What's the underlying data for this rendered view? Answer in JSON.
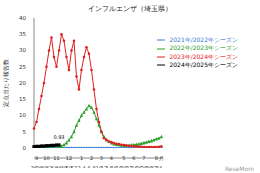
{
  "chart_data": {
    "type": "line",
    "title": "インフルエンザ（埼玉県）",
    "y_label": "定点当たり報告数",
    "source": "ReseMom",
    "categories": [
      36,
      null,
      38,
      null,
      40,
      null,
      42,
      null,
      44,
      null,
      46,
      null,
      48,
      null,
      50,
      null,
      52,
      null,
      2,
      null,
      4,
      null,
      6,
      null,
      8,
      null,
      10,
      null,
      12,
      null,
      14,
      null,
      16,
      null,
      18,
      null,
      20,
      null,
      22,
      null,
      24,
      null,
      26,
      null,
      28,
      null,
      30,
      null,
      32,
      null,
      34,
      null
    ],
    "month_labels": [
      null,
      "9",
      null,
      null,
      null,
      "10",
      null,
      null,
      null,
      "11",
      null,
      null,
      null,
      null,
      "12",
      null,
      null,
      null,
      null,
      "1",
      null,
      null,
      null,
      "2",
      null,
      null,
      null,
      "3",
      null,
      null,
      null,
      "4",
      null,
      null,
      null,
      null,
      "5",
      null,
      null,
      null,
      "6",
      null,
      null,
      null,
      "7",
      null,
      null,
      null,
      null,
      "8",
      null,
      "月"
    ],
    "series": [
      {
        "name": "2021年/2022年シーズン",
        "color": "#3a7bd5",
        "marker": "diamond",
        "values": [
          0,
          0,
          0,
          0,
          0,
          0,
          0,
          0,
          0,
          0,
          0,
          0,
          0,
          0,
          0,
          0,
          0,
          0,
          0,
          0,
          0,
          0,
          0,
          0,
          0,
          0,
          0,
          0,
          0,
          0,
          0,
          0,
          0,
          0,
          0,
          0,
          0,
          0,
          0,
          0,
          0,
          0,
          0,
          0,
          0,
          0,
          0,
          0,
          0,
          0,
          0,
          0
        ]
      },
      {
        "name": "2022年/2023年シーズン",
        "color": "#2ca02c",
        "marker": "triangle",
        "values": [
          0,
          0,
          0,
          0,
          0,
          0,
          0,
          0,
          0,
          0,
          0.3,
          0.6,
          1,
          1.6,
          2.5,
          3.5,
          5,
          7,
          8.5,
          10,
          11,
          12,
          13,
          12.5,
          11,
          9,
          7,
          5,
          3.5,
          2.5,
          2,
          1.6,
          1.3,
          1.1,
          1,
          0.9,
          0.8,
          0.8,
          0.8,
          0.9,
          1,
          1.1,
          1.2,
          1.4,
          1.6,
          1.8,
          2,
          2.2,
          2.5,
          2.8,
          3,
          3.5
        ]
      },
      {
        "name": "2023年/2024年シーズン",
        "color": "#e02020",
        "marker": "circle",
        "values": [
          6,
          8,
          12,
          16,
          20,
          25,
          30,
          34,
          28,
          25,
          30,
          35,
          33,
          28,
          24,
          30,
          33,
          22,
          18,
          24,
          28,
          31,
          29,
          24,
          18,
          12,
          8,
          5,
          3,
          2.5,
          2,
          1.8,
          1.5,
          1.3,
          1.2,
          1,
          0.9,
          0.8,
          0.7,
          0.6,
          0.5,
          0.5,
          0.4,
          0.4,
          0.3,
          0.3,
          0.3,
          0.3,
          0.3,
          0.3,
          0.4,
          0.5
        ]
      },
      {
        "name": "2024年/2025年シーズン",
        "color": "#000000",
        "marker": "square",
        "values": [
          0.4,
          0.5,
          0.5,
          0.6,
          0.6,
          0.7,
          0.7,
          0.8,
          0.8,
          0.9,
          0.93,
          null,
          null,
          null,
          null,
          null,
          null,
          null,
          null,
          null,
          null,
          null,
          null,
          null,
          null,
          null,
          null,
          null,
          null,
          null,
          null,
          null,
          null,
          null,
          null,
          null,
          null,
          null,
          null,
          null,
          null,
          null,
          null,
          null,
          null,
          null,
          null,
          null,
          null,
          null,
          null,
          null
        ]
      }
    ],
    "annotations": [
      {
        "text": "0.93",
        "x": 10,
        "y": 0.93
      }
    ],
    "ylim": [
      0,
      40
    ],
    "yticks": [
      0,
      5,
      10,
      15,
      20,
      25,
      30,
      35,
      40
    ],
    "grid": false,
    "legend": "upper right"
  }
}
